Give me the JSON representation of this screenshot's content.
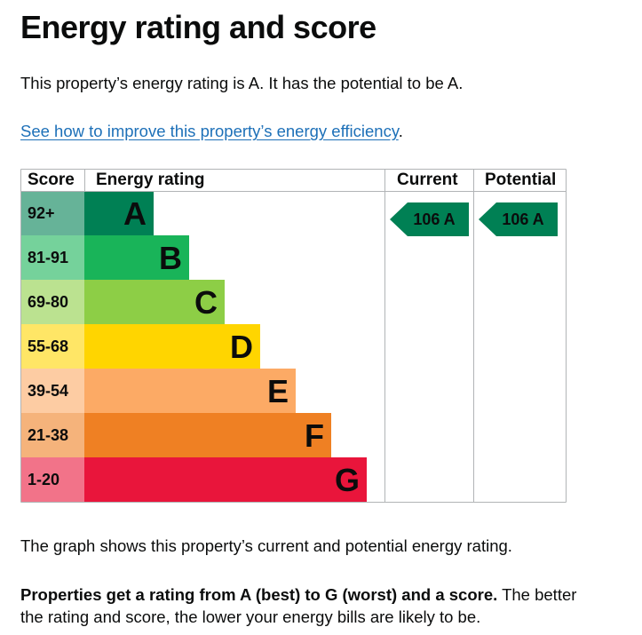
{
  "page": {
    "title": "Energy rating and score",
    "intro": "This property’s energy rating is A. It has the potential to be A.",
    "improve_link": "See how to improve this property’s energy efficiency",
    "improve_suffix": ".",
    "graph_note": "The graph shows this property’s current and potential energy rating.",
    "ratings_bold": "Properties get a rating from A (best) to G (worst) and a score.",
    "ratings_rest": " The better the rating and score, the lower your energy bills are likely to be."
  },
  "chart_data": {
    "type": "table",
    "headers": {
      "score": "Score",
      "energy_rating": "Energy rating",
      "current": "Current",
      "potential": "Potential"
    },
    "bands": [
      {
        "letter": "A",
        "score": "92+",
        "color": "#008054",
        "score_bg": "#66b398"
      },
      {
        "letter": "B",
        "score": "81-91",
        "color": "#19b459",
        "score_bg": "#75d29b"
      },
      {
        "letter": "C",
        "score": "69-80",
        "color": "#8dce46",
        "score_bg": "#bbe290"
      },
      {
        "letter": "D",
        "score": "55-68",
        "color": "#ffd500",
        "score_bg": "#ffe666"
      },
      {
        "letter": "E",
        "score": "39-54",
        "color": "#fcaa65",
        "score_bg": "#fdcca3"
      },
      {
        "letter": "F",
        "score": "21-38",
        "color": "#ef8023",
        "score_bg": "#f5b37b"
      },
      {
        "letter": "G",
        "score": "1-20",
        "color": "#e9153b",
        "score_bg": "#f27389"
      }
    ],
    "current": {
      "score": 106,
      "letter": "A",
      "label": "106  A",
      "color": "#008054"
    },
    "potential": {
      "score": 106,
      "letter": "A",
      "label": "106  A",
      "color": "#008054"
    }
  }
}
